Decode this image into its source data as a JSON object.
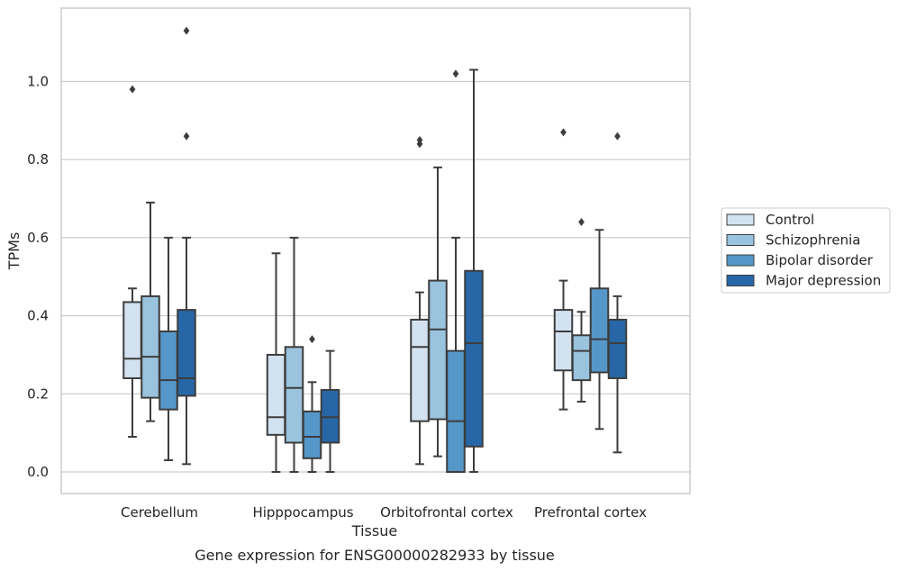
{
  "chart_data": {
    "type": "box",
    "title": "",
    "caption": "Gene expression for ENSG00000282933 by tissue",
    "xlabel": "Tissue",
    "ylabel": "TPMs",
    "ylim": [
      -0.055,
      1.19
    ],
    "yticks": [
      "0.0",
      "0.2",
      "0.4",
      "0.6",
      "0.8",
      "1.0"
    ],
    "grid": "horizontal",
    "legend_position": "right",
    "categories": [
      "Cerebellum",
      "Hipppocampus",
      "Orbitofrontal cortex",
      "Prefrontal cortex"
    ],
    "series": [
      {
        "name": "Control",
        "color": "#d3e2f0",
        "boxes": [
          {
            "whislo": 0.09,
            "q1": 0.24,
            "med": 0.29,
            "q3": 0.435,
            "whishi": 0.47,
            "fliers": [
              0.98
            ]
          },
          {
            "whislo": 0.0,
            "q1": 0.095,
            "med": 0.14,
            "q3": 0.3,
            "whishi": 0.56,
            "fliers": []
          },
          {
            "whislo": 0.02,
            "q1": 0.13,
            "med": 0.32,
            "q3": 0.39,
            "whishi": 0.46,
            "fliers": [
              0.84,
              0.85
            ]
          },
          {
            "whislo": 0.16,
            "q1": 0.26,
            "med": 0.36,
            "q3": 0.415,
            "whishi": 0.49,
            "fliers": [
              0.87
            ]
          }
        ]
      },
      {
        "name": "Schizophrenia",
        "color": "#9ac3dd",
        "boxes": [
          {
            "whislo": 0.13,
            "q1": 0.19,
            "med": 0.295,
            "q3": 0.45,
            "whishi": 0.69,
            "fliers": []
          },
          {
            "whislo": 0.0,
            "q1": 0.075,
            "med": 0.215,
            "q3": 0.32,
            "whishi": 0.6,
            "fliers": []
          },
          {
            "whislo": 0.04,
            "q1": 0.135,
            "med": 0.365,
            "q3": 0.49,
            "whishi": 0.78,
            "fliers": []
          },
          {
            "whislo": 0.18,
            "q1": 0.235,
            "med": 0.31,
            "q3": 0.35,
            "whishi": 0.41,
            "fliers": [
              0.64
            ]
          }
        ]
      },
      {
        "name": "Bipolar disorder",
        "color": "#5597c8",
        "boxes": [
          {
            "whislo": 0.03,
            "q1": 0.16,
            "med": 0.235,
            "q3": 0.36,
            "whishi": 0.6,
            "fliers": []
          },
          {
            "whislo": 0.0,
            "q1": 0.035,
            "med": 0.09,
            "q3": 0.155,
            "whishi": 0.23,
            "fliers": [
              0.34
            ]
          },
          {
            "whislo": 0.0,
            "q1": 0.0,
            "med": 0.13,
            "q3": 0.31,
            "whishi": 0.6,
            "fliers": [
              1.02
            ]
          },
          {
            "whislo": 0.11,
            "q1": 0.255,
            "med": 0.34,
            "q3": 0.47,
            "whishi": 0.62,
            "fliers": []
          }
        ]
      },
      {
        "name": "Major depression",
        "color": "#2767a7",
        "boxes": [
          {
            "whislo": 0.02,
            "q1": 0.195,
            "med": 0.24,
            "q3": 0.415,
            "whishi": 0.6,
            "fliers": [
              0.86,
              1.13
            ]
          },
          {
            "whislo": 0.0,
            "q1": 0.075,
            "med": 0.14,
            "q3": 0.21,
            "whishi": 0.31,
            "fliers": []
          },
          {
            "whislo": 0.0,
            "q1": 0.065,
            "med": 0.33,
            "q3": 0.515,
            "whishi": 1.03,
            "fliers": []
          },
          {
            "whislo": 0.05,
            "q1": 0.24,
            "med": 0.33,
            "q3": 0.39,
            "whishi": 0.45,
            "fliers": [
              0.86
            ]
          }
        ]
      }
    ]
  }
}
